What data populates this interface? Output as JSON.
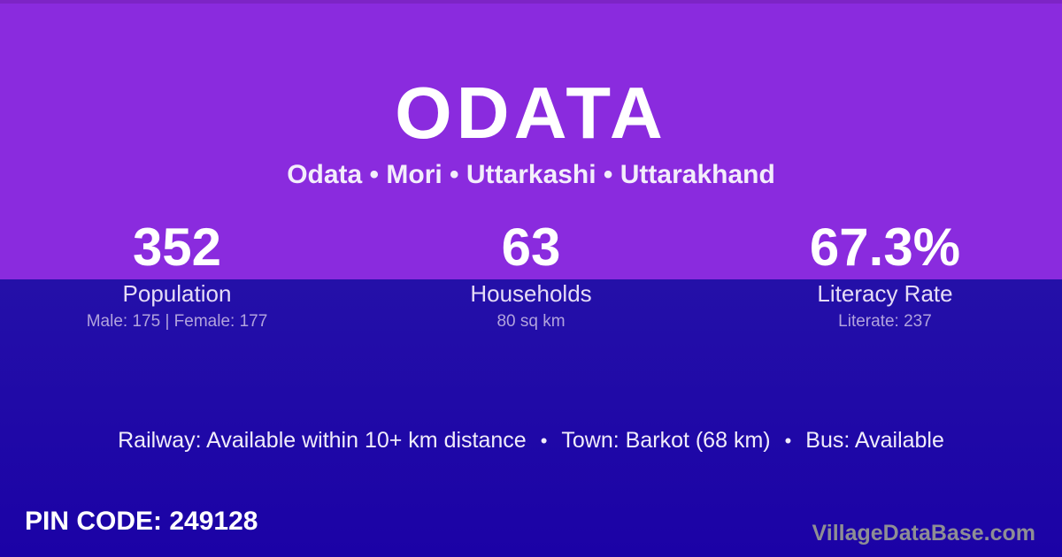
{
  "colors": {
    "top_bg": "#8A2BDE",
    "top_edge": "#7D24C5",
    "bottom_bg_start": "#2410A8",
    "bottom_bg_end": "#1B02A6",
    "white_text": "#FFFFFF",
    "subtitle_text": "#F3EDFB",
    "label_text": "#E5DCF6",
    "detail_text": "#B1A3DD",
    "transport_text": "#F0ECFA",
    "watermark_text": "#8E8E94"
  },
  "header": {
    "title": "ODATA",
    "breadcrumb": "Odata • Mori • Uttarkashi • Uttarakhand"
  },
  "stats": [
    {
      "value": "352",
      "label": "Population",
      "detail": "Male: 175 | Female: 177"
    },
    {
      "value": "63",
      "label": "Households",
      "detail": "80 sq km"
    },
    {
      "value": "67.3%",
      "label": "Literacy Rate",
      "detail": "Literate: 237"
    }
  ],
  "transport": {
    "separator": "•",
    "segments": [
      "Railway: Available within 10+ km distance",
      "Town: Barkot (68 km)",
      "Bus: Available"
    ]
  },
  "footer": {
    "pin_code": "PIN CODE: 249128",
    "watermark": "VillageDataBase.com"
  }
}
